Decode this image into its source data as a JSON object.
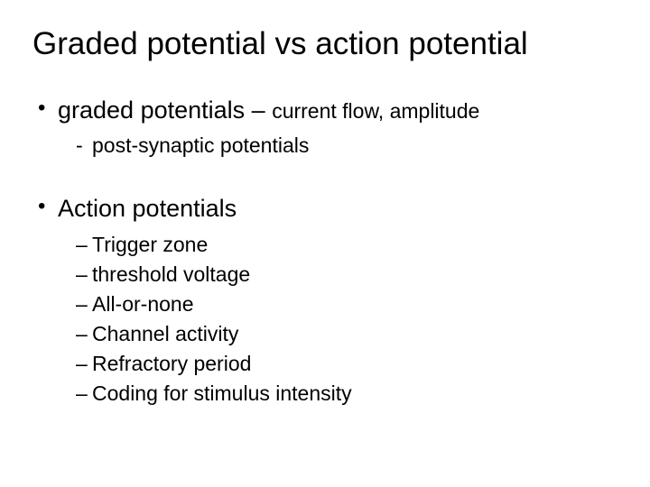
{
  "slide": {
    "title": "Graded potential vs action potential",
    "bullets": [
      {
        "text_main": "graded potentials – ",
        "text_sub": "current flow, amplitude",
        "children_style": "dash",
        "children": [
          "post-synaptic potentials"
        ]
      },
      {
        "text_main": "Action potentials",
        "text_sub": "",
        "children_style": "endash",
        "children": [
          "Trigger zone",
          "threshold voltage",
          "All-or-none",
          "Channel activity",
          "Refractory period",
          "Coding for stimulus intensity"
        ]
      }
    ],
    "style": {
      "background_color": "#ffffff",
      "text_color": "#000000",
      "title_fontsize": 35,
      "bullet_fontsize": 27,
      "sub_fontsize": 23,
      "font_family": "Arial"
    }
  }
}
